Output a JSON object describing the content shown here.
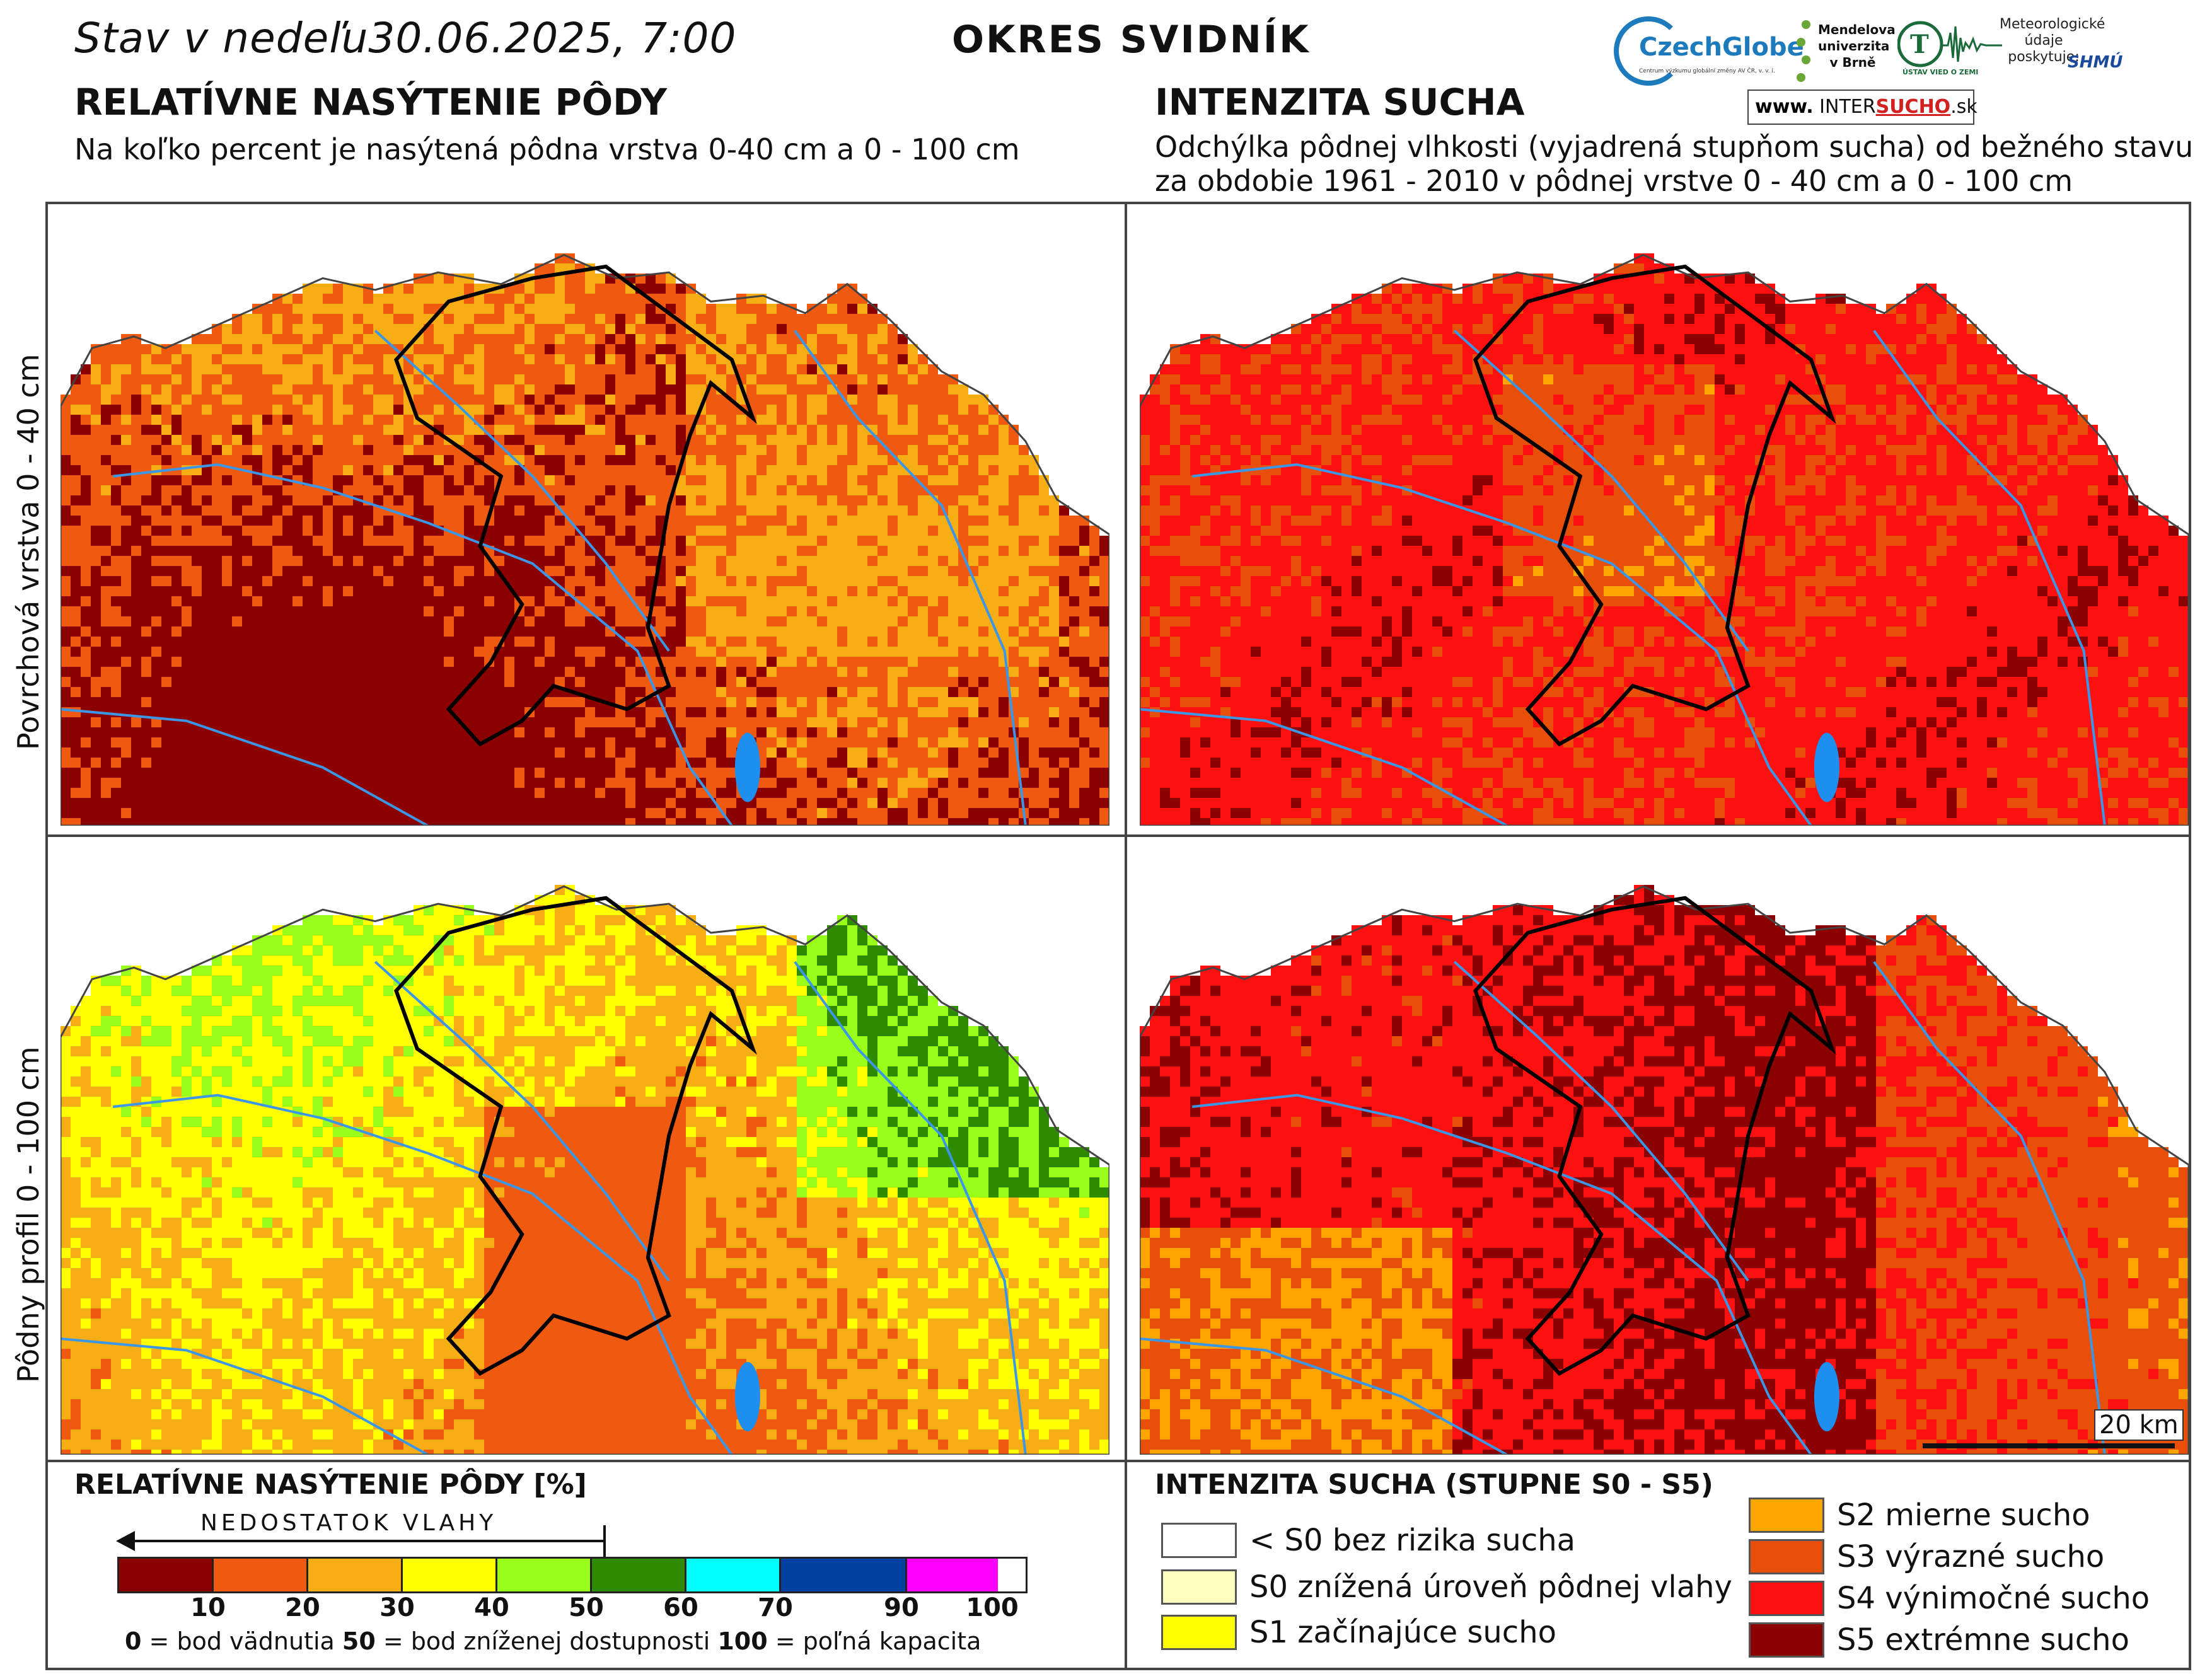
{
  "header": {
    "date_text": "Stav v nedeľu30.06.2025, 7:00",
    "district": "OKRES SVIDNÍK"
  },
  "logos": {
    "czechglobe": "CzechGlobe",
    "czechglobe_sub": "Centrum výzkumu globální změny AV ČR, v. v. i.",
    "mendel_1": "Mendelova",
    "mendel_2": "univerzita",
    "mendel_3": "v Brně",
    "uvz": "ÚSTAV VIED O ZEMI",
    "shmu_label_1": "Meteorologické",
    "shmu_label_2": "údaje",
    "shmu_label_3": "poskytuje:",
    "shmu": "SHMÚ",
    "intersucho_www": "www.",
    "intersucho_inter": "INTER",
    "intersucho_sucho": "SUCHO",
    "intersucho_tld": ".sk"
  },
  "left_panel": {
    "title": "RELATÍVNE NASÝTENIE PÔDY",
    "subtitle": "Na koľko percent je nasýtená pôdna vrstva 0-40 cm a 0 - 100 cm"
  },
  "right_panel": {
    "title": "INTENZITA SUCHA",
    "subtitle_1": "Odchýlka pôdnej vlhkosti (vyjadrená stupňom sucha) od bežného stavu",
    "subtitle_2": "za obdobie 1961 - 2010 v pôdnej vrstve 0 - 40 cm a 0 - 100 cm"
  },
  "rows": {
    "top": "Povrchová vrstva 0 - 40 cm",
    "bottom": "Pôdny profil 0 - 100 cm"
  },
  "scale": {
    "label": "20 km"
  },
  "saturation_legend": {
    "title": "RELATÍVNE NASÝTENIE PÔDY [%]",
    "deficit": "NEDOSTATOK VLAHY",
    "classes": [
      {
        "range": "0-10",
        "color": "#8b0000"
      },
      {
        "range": "10-20",
        "color": "#f05a10"
      },
      {
        "range": "20-30",
        "color": "#f7ad14"
      },
      {
        "range": "30-40",
        "color": "#ffff00"
      },
      {
        "range": "40-50",
        "color": "#99ff1a"
      },
      {
        "range": "50-60",
        "color": "#2e8b00"
      },
      {
        "range": "60-70",
        "color": "#00ffff"
      },
      {
        "range": "70-90",
        "color": "#0040a0"
      },
      {
        "range": "90-100",
        "color": "#ff00ff"
      }
    ],
    "ticks": [
      "10",
      "20",
      "30",
      "40",
      "50",
      "60",
      "70",
      "90",
      "100"
    ],
    "expl_0_num": "0",
    "expl_0_txt": " = bod vädnutia ",
    "expl_50_num": "50",
    "expl_50_txt": " = bod zníženej dostupnosti ",
    "expl_100_num": "100",
    "expl_100_txt": " = poľná kapacita"
  },
  "drought_legend": {
    "title": "INTENZITA SUCHA (STUPNE S0 - S5)",
    "items": [
      {
        "label": "< S0 bez rizika sucha",
        "color": "#ffffff"
      },
      {
        "label": "S0 znížená úroveň pôdnej vlahy",
        "color": "#ffffc0"
      },
      {
        "label": "S1 začínajúce sucho",
        "color": "#ffff00"
      },
      {
        "label": "S2 mierne sucho",
        "color": "#ffa500"
      },
      {
        "label": "S3 výrazné sucho",
        "color": "#e8500a"
      },
      {
        "label": "S4 výnimočné sucho",
        "color": "#ff1010"
      },
      {
        "label": "S5 extrémne sucho",
        "color": "#8b0000"
      }
    ]
  }
}
